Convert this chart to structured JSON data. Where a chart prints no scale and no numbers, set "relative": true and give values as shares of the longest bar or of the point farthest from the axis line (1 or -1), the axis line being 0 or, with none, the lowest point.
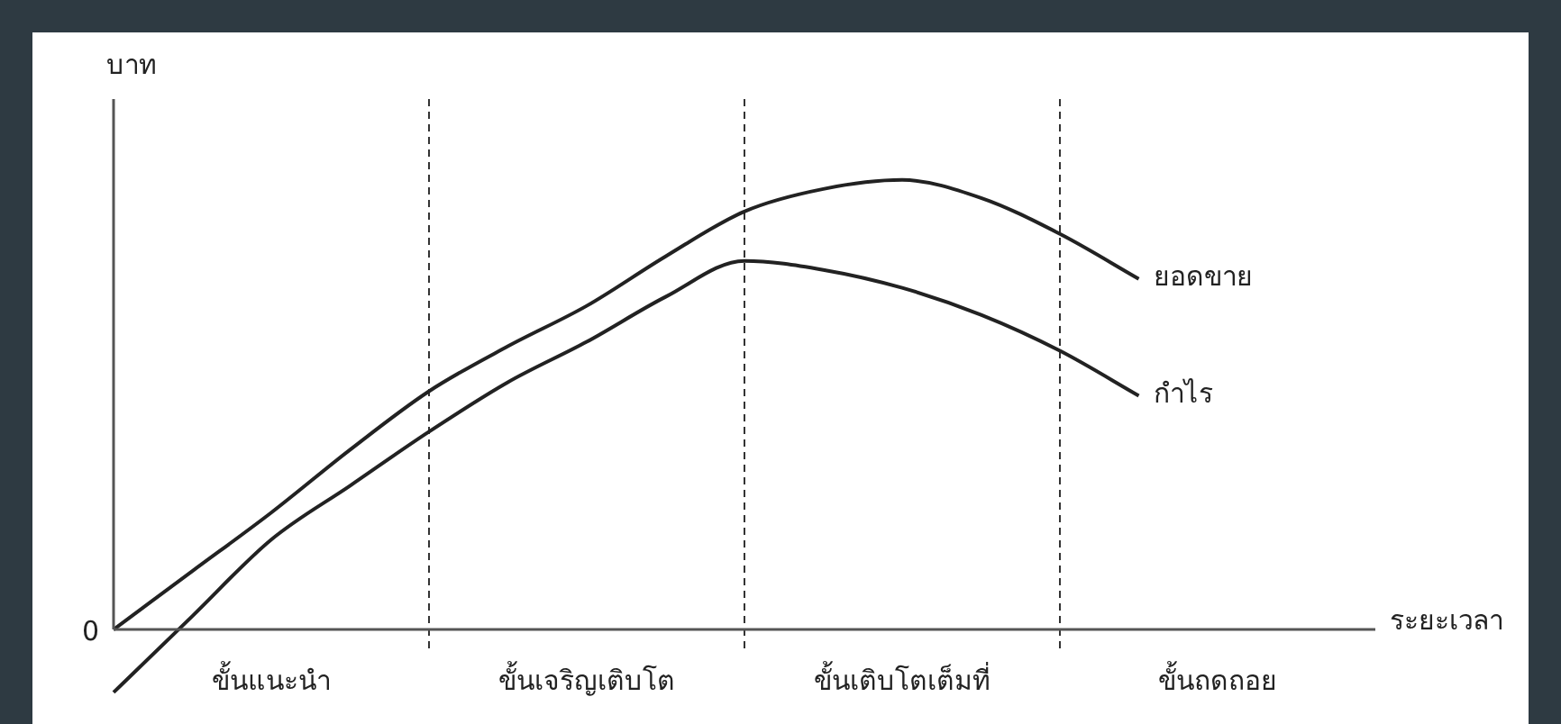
{
  "chart_data": {
    "type": "line",
    "relative": true,
    "xlabel": "ระยะเวลา",
    "ylabel": "บาท",
    "categories": [
      null,
      null,
      "ขั้นแนะนำ",
      null,
      null,
      null,
      "ขั้นเจริญเติบโต",
      null,
      null,
      null,
      "ขั้นเติบโตเต็มที่",
      null,
      null,
      null,
      "ขั้นถดถอย",
      null,
      null
    ],
    "annotations": [
      "0"
    ],
    "legend": false,
    "grid": "x",
    "marker": "none",
    "line_style": "solid",
    "series": [
      {
        "name": "ยอดขาย",
        "color": "#222222",
        "values": [
          0,
          0.13,
          0.26,
          0.4,
          0.53,
          0.63,
          0.72,
          0.83,
          0.93,
          0.98,
          1,
          0.96,
          0.88,
          0.78,
          null,
          null,
          null
        ]
      },
      {
        "name": "กำไร",
        "color": "#222222",
        "values": [
          -0.14,
          0.03,
          0.2,
          0.32,
          0.44,
          0.55,
          0.64,
          0.74,
          0.82,
          0.8,
          0.76,
          0.7,
          0.62,
          0.52,
          null,
          null,
          null
        ]
      }
    ]
  }
}
